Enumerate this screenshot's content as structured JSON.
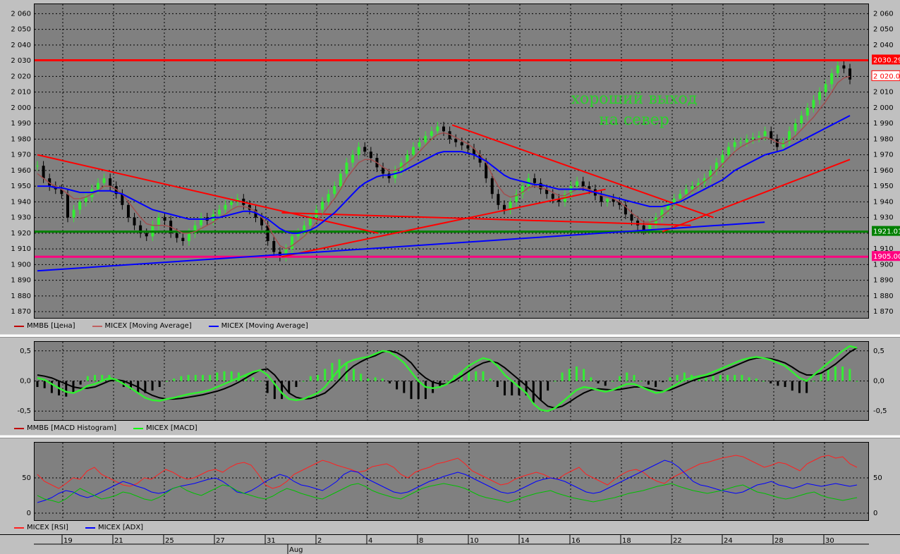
{
  "chart_data": [
    {
      "type": "candlestick",
      "title": "",
      "ylim": [
        1866,
        2066
      ],
      "yticks": [
        "2 060",
        "2 050",
        "2 040",
        "2 030",
        "2 020",
        "2 010",
        "2 000",
        "1 990",
        "1 980",
        "1 970",
        "1 960",
        "1 950",
        "1 940",
        "1 930",
        "1 920",
        "1 910",
        "1 900",
        "1 890",
        "1 880",
        "1 870"
      ],
      "yticks_right": [
        "2 060",
        "2 050",
        "2 040",
        "2 030",
        "2 020",
        "2 010",
        "2 000",
        "1 990",
        "1 980",
        "1 970",
        "1 960",
        "1 950",
        "1 940",
        "1 930",
        "1 920",
        "1 910",
        "1 900",
        "1 890",
        "1 880",
        "1 870"
      ],
      "price_close": [
        1963,
        1955,
        1950,
        1948,
        1945,
        1930,
        1935,
        1940,
        1943,
        1948,
        1952,
        1955,
        1950,
        1945,
        1938,
        1930,
        1925,
        1920,
        1918,
        1925,
        1930,
        1928,
        1920,
        1917,
        1915,
        1920,
        1925,
        1930,
        1928,
        1932,
        1935,
        1938,
        1940,
        1942,
        1938,
        1935,
        1930,
        1925,
        1915,
        1908,
        1905,
        1910,
        1918,
        1920,
        1925,
        1930,
        1935,
        1940,
        1945,
        1950,
        1958,
        1965,
        1970,
        1975,
        1972,
        1968,
        1962,
        1958,
        1955,
        1960,
        1965,
        1970,
        1975,
        1978,
        1982,
        1985,
        1988,
        1985,
        1980,
        1978,
        1976,
        1974,
        1970,
        1965,
        1955,
        1945,
        1938,
        1935,
        1940,
        1945,
        1950,
        1955,
        1952,
        1948,
        1945,
        1942,
        1940,
        1945,
        1950,
        1953,
        1950,
        1948,
        1944,
        1940,
        1942,
        1940,
        1938,
        1932,
        1928,
        1925,
        1922,
        1926,
        1930,
        1935,
        1938,
        1942,
        1945,
        1948,
        1950,
        1952,
        1955,
        1960,
        1965,
        1970,
        1975,
        1978,
        1978,
        1980,
        1981,
        1982,
        1985,
        1980,
        1975,
        1978,
        1985,
        1990,
        1995,
        2000,
        2005,
        2010,
        2015,
        2022,
        2027,
        2025,
        2018
      ],
      "ma_short": [
        1958,
        1955,
        1952,
        1950,
        1948,
        1945,
        1942,
        1942,
        1943,
        1945,
        1947,
        1950,
        1950,
        1948,
        1945,
        1940,
        1935,
        1930,
        1926,
        1925,
        1925,
        1925,
        1924,
        1922,
        1920,
        1920,
        1921,
        1923,
        1925,
        1927,
        1930,
        1932,
        1935,
        1937,
        1937,
        1936,
        1934,
        1930,
        1925,
        1918,
        1912,
        1910,
        1912,
        1915,
        1918,
        1922,
        1927,
        1932,
        1937,
        1942,
        1948,
        1955,
        1960,
        1965,
        1967,
        1967,
        1965,
        1962,
        1960,
        1960,
        1962,
        1965,
        1968,
        1972,
        1976,
        1980,
        1983,
        1984,
        1983,
        1981,
        1979,
        1977,
        1974,
        1970,
        1965,
        1957,
        1950,
        1945,
        1943,
        1944,
        1946,
        1949,
        1950,
        1949,
        1948,
        1946,
        1944,
        1944,
        1946,
        1948,
        1949,
        1948,
        1946,
        1944,
        1943,
        1942,
        1940,
        1937,
        1933,
        1930,
        1927,
        1927,
        1928,
        1931,
        1934,
        1938,
        1941,
        1944,
        1947,
        1950,
        1953,
        1956,
        1960,
        1964,
        1968,
        1972,
        1975,
        1977,
        1979,
        1980,
        1981,
        1980,
        1978,
        1977,
        1979,
        1982,
        1986,
        1990,
        1994,
        1999,
        2004,
        2010,
        2016,
        2019,
        2020
      ],
      "ma_long": [
        1950,
        1950,
        1950,
        1949,
        1949,
        1948,
        1947,
        1946,
        1946,
        1946,
        1947,
        1947,
        1947,
        1946,
        1945,
        1943,
        1941,
        1939,
        1937,
        1935,
        1934,
        1933,
        1932,
        1931,
        1930,
        1929,
        1929,
        1929,
        1929,
        1930,
        1930,
        1931,
        1932,
        1933,
        1934,
        1934,
        1933,
        1931,
        1929,
        1926,
        1923,
        1921,
        1920,
        1920,
        1921,
        1922,
        1924,
        1927,
        1930,
        1933,
        1937,
        1941,
        1945,
        1949,
        1952,
        1954,
        1956,
        1957,
        1957,
        1958,
        1959,
        1961,
        1963,
        1965,
        1967,
        1969,
        1971,
        1972,
        1972,
        1972,
        1972,
        1971,
        1970,
        1968,
        1966,
        1963,
        1960,
        1957,
        1955,
        1954,
        1953,
        1952,
        1951,
        1951,
        1950,
        1949,
        1948,
        1948,
        1948,
        1948,
        1948,
        1947,
        1946,
        1945,
        1944,
        1943,
        1942,
        1941,
        1940,
        1939,
        1938,
        1937,
        1937,
        1937,
        1938,
        1939,
        1940,
        1942,
        1944,
        1946,
        1948,
        1950,
        1952,
        1954,
        1957,
        1960,
        1962,
        1964,
        1966,
        1968,
        1970,
        1971,
        1972,
        1973,
        1975,
        1977,
        1979,
        1981,
        1983,
        1985,
        1987,
        1989,
        1991,
        1993,
        1995
      ],
      "hlines": [
        {
          "value": 2030.29,
          "label": "2030.29",
          "color": "#ff0000"
        },
        {
          "value": 1921.01,
          "label": "1921.01",
          "color": "#008000"
        },
        {
          "value": 1905.0,
          "label": "1905.00",
          "color": "#ff0080"
        }
      ],
      "marker_label": {
        "value": 2020.0,
        "label": "2 020.0"
      },
      "annotation": [
        "хороший выход",
        "на север"
      ],
      "legend": [
        {
          "label": "ММВБ [Цена]",
          "color": "#c00000"
        },
        {
          "label": "MICEX [Moving Average]",
          "color": "#c06060"
        },
        {
          "label": "MICEX [Moving Average]",
          "color": "#0000ff"
        }
      ]
    },
    {
      "type": "macd",
      "ylim": [
        -0.65,
        0.65
      ],
      "yticks_left": [
        "0,5",
        "0,0",
        "-0,5"
      ],
      "yticks_right": [
        "0,5",
        "0,0",
        "-0,5"
      ],
      "macd": [
        0.05,
        0.02,
        -0.05,
        -0.12,
        -0.18,
        -0.2,
        -0.15,
        -0.08,
        -0.05,
        0.0,
        0.05,
        0.02,
        -0.05,
        -0.12,
        -0.2,
        -0.28,
        -0.32,
        -0.33,
        -0.3,
        -0.28,
        -0.25,
        -0.22,
        -0.2,
        -0.18,
        -0.15,
        -0.1,
        -0.05,
        0.0,
        0.05,
        0.1,
        0.15,
        0.18,
        0.1,
        -0.05,
        -0.2,
        -0.3,
        -0.32,
        -0.3,
        -0.25,
        -0.2,
        -0.1,
        0.05,
        0.2,
        0.3,
        0.35,
        0.38,
        0.4,
        0.45,
        0.5,
        0.48,
        0.4,
        0.3,
        0.15,
        0.0,
        -0.1,
        -0.12,
        -0.1,
        -0.05,
        0.05,
        0.15,
        0.25,
        0.32,
        0.38,
        0.35,
        0.25,
        0.1,
        0.0,
        -0.1,
        -0.2,
        -0.38,
        -0.48,
        -0.5,
        -0.45,
        -0.35,
        -0.25,
        -0.15,
        -0.1,
        -0.12,
        -0.15,
        -0.18,
        -0.15,
        -0.1,
        -0.05,
        -0.05,
        -0.1,
        -0.15,
        -0.2,
        -0.18,
        -0.12,
        -0.05,
        0.02,
        0.05,
        0.08,
        0.1,
        0.15,
        0.2,
        0.25,
        0.3,
        0.35,
        0.38,
        0.4,
        0.38,
        0.35,
        0.3,
        0.25,
        0.15,
        0.05,
        0.0,
        0.1,
        0.2,
        0.3,
        0.4,
        0.5,
        0.58,
        0.55
      ],
      "signal": [
        0.1,
        0.08,
        0.05,
        0.0,
        -0.05,
        -0.1,
        -0.12,
        -0.12,
        -0.1,
        -0.05,
        0.0,
        0.02,
        0.0,
        -0.05,
        -0.1,
        -0.18,
        -0.24,
        -0.28,
        -0.3,
        -0.3,
        -0.29,
        -0.27,
        -0.25,
        -0.23,
        -0.2,
        -0.17,
        -0.13,
        -0.08,
        -0.02,
        0.05,
        0.12,
        0.18,
        0.2,
        0.1,
        -0.05,
        -0.2,
        -0.27,
        -0.3,
        -0.29,
        -0.25,
        -0.2,
        -0.1,
        0.02,
        0.15,
        0.25,
        0.32,
        0.38,
        0.42,
        0.48,
        0.5,
        0.47,
        0.4,
        0.3,
        0.15,
        0.05,
        -0.02,
        -0.05,
        -0.05,
        0.0,
        0.08,
        0.16,
        0.24,
        0.3,
        0.33,
        0.3,
        0.22,
        0.12,
        0.02,
        -0.08,
        -0.2,
        -0.32,
        -0.42,
        -0.45,
        -0.42,
        -0.35,
        -0.27,
        -0.2,
        -0.15,
        -0.13,
        -0.14,
        -0.15,
        -0.14,
        -0.12,
        -0.1,
        -0.1,
        -0.12,
        -0.15,
        -0.17,
        -0.15,
        -0.1,
        -0.05,
        0.0,
        0.04,
        0.07,
        0.1,
        0.15,
        0.2,
        0.25,
        0.3,
        0.35,
        0.38,
        0.38,
        0.37,
        0.34,
        0.3,
        0.23,
        0.15,
        0.1,
        0.1,
        0.13,
        0.2,
        0.28,
        0.38,
        0.48,
        0.55
      ],
      "legend": [
        {
          "label": "ММВБ [MACD Histogram]",
          "color": "#c00000"
        },
        {
          "label": "MICEX [MACD]",
          "color": "#00ff00"
        }
      ]
    },
    {
      "type": "line",
      "ylim": [
        -10,
        100
      ],
      "yticks_left": [
        "50",
        "0"
      ],
      "yticks_right": [
        "50",
        "0"
      ],
      "series": [
        {
          "name": "MICEX [RSI]",
          "color": "#ff2020",
          "values": [
            55,
            45,
            40,
            35,
            42,
            50,
            48,
            60,
            65,
            55,
            50,
            45,
            40,
            38,
            42,
            50,
            48,
            55,
            62,
            58,
            52,
            48,
            50,
            55,
            60,
            62,
            58,
            65,
            70,
            72,
            68,
            55,
            40,
            35,
            38,
            45,
            55,
            60,
            65,
            70,
            75,
            72,
            68,
            65,
            62,
            58,
            60,
            66,
            68,
            70,
            65,
            55,
            50,
            58,
            62,
            65,
            70,
            72,
            75,
            78,
            70,
            60,
            55,
            50,
            45,
            40,
            42,
            48,
            52,
            55,
            58,
            55,
            50,
            48,
            55,
            60,
            65,
            55,
            50,
            45,
            40,
            48,
            55,
            60,
            62,
            58,
            50,
            45,
            42,
            50,
            55,
            60,
            65,
            70,
            72,
            75,
            78,
            80,
            82,
            80,
            75,
            70,
            65,
            68,
            72,
            70,
            65,
            60,
            70,
            75,
            80,
            82,
            78,
            80,
            70,
            65
          ]
        },
        {
          "name": "MICEX [ADX]",
          "color": "#0000ff",
          "values": [
            15,
            18,
            22,
            28,
            32,
            30,
            25,
            22,
            25,
            30,
            35,
            40,
            45,
            42,
            38,
            35,
            30,
            28,
            30,
            35,
            38,
            40,
            42,
            45,
            48,
            50,
            45,
            38,
            30,
            28,
            32,
            38,
            45,
            50,
            55,
            52,
            45,
            40,
            38,
            35,
            32,
            38,
            45,
            55,
            60,
            58,
            50,
            45,
            40,
            35,
            30,
            28,
            30,
            35,
            40,
            45,
            48,
            52,
            55,
            58,
            55,
            50,
            45,
            40,
            35,
            30,
            28,
            30,
            35,
            40,
            45,
            48,
            50,
            48,
            45,
            40,
            35,
            30,
            28,
            30,
            35,
            40,
            45,
            50,
            55,
            60,
            65,
            70,
            75,
            72,
            65,
            55,
            45,
            40,
            38,
            35,
            32,
            30,
            28,
            30,
            35,
            40,
            42,
            45,
            40,
            38,
            35,
            38,
            42,
            40,
            38,
            40,
            42,
            40,
            38,
            40
          ]
        },
        {
          "name": "",
          "color": "#00c000",
          "values": [
            25,
            20,
            18,
            15,
            20,
            28,
            35,
            30,
            25,
            20,
            22,
            25,
            30,
            28,
            24,
            20,
            18,
            22,
            28,
            35,
            38,
            32,
            28,
            25,
            30,
            35,
            40,
            38,
            32,
            28,
            25,
            22,
            20,
            24,
            30,
            35,
            32,
            28,
            25,
            22,
            20,
            25,
            30,
            35,
            40,
            42,
            38,
            32,
            28,
            25,
            22,
            20,
            25,
            30,
            35,
            38,
            40,
            42,
            40,
            38,
            35,
            30,
            25,
            22,
            20,
            18,
            15,
            18,
            22,
            25,
            28,
            30,
            32,
            28,
            25,
            22,
            20,
            18,
            16,
            18,
            20,
            22,
            25,
            28,
            30,
            32,
            35,
            38,
            40,
            42,
            38,
            35,
            32,
            30,
            28,
            30,
            32,
            35,
            38,
            40,
            35,
            30,
            28,
            25,
            22,
            20,
            22,
            25,
            28,
            30,
            25,
            22,
            20,
            18,
            20,
            22
          ]
        }
      ],
      "legend": [
        {
          "label": "MICEX [RSI]",
          "color": "#ff2020"
        },
        {
          "label": "MICEX [ADX]",
          "color": "#0000ff"
        }
      ]
    }
  ],
  "xaxis": {
    "days": [
      "19",
      "21",
      "25",
      "27",
      "31",
      "2",
      "4",
      "8",
      "10",
      "14",
      "16",
      "18",
      "22",
      "24",
      "28",
      "30"
    ],
    "month_label": "Aug"
  }
}
